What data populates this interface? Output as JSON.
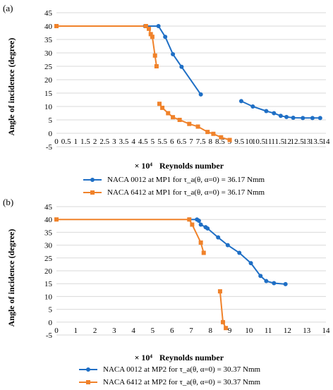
{
  "chart_data": [
    {
      "type": "line",
      "panel_label": "(a)",
      "xlabel_prefix": "× 10⁴",
      "xlabel": "Reynolds number",
      "ylabel": "Angle of incidence (degree)",
      "xlim": [
        0,
        14
      ],
      "ylim": [
        -5,
        45
      ],
      "x_ticks": [
        0,
        0.5,
        1,
        1.5,
        2,
        2.5,
        3,
        3.5,
        4,
        4.5,
        5,
        5.5,
        6,
        6.5,
        7,
        7.5,
        8,
        8.5,
        9,
        9.5,
        10,
        10.5,
        11,
        11.5,
        12,
        12.5,
        13,
        13.5,
        14
      ],
      "x_tick_labels": [
        "0",
        "0.5",
        "1",
        "1.5",
        "2",
        "2.5",
        "3",
        "3.5",
        "4",
        "4.5",
        "5",
        "5.5",
        "6",
        "6.5",
        "7",
        "7.5",
        "8",
        "8.5",
        "9",
        "9.5",
        "10",
        "10.5",
        "11",
        "11.5",
        "12",
        "12.5",
        "13",
        "13.5",
        "14"
      ],
      "y_ticks": [
        -5,
        0,
        5,
        10,
        15,
        20,
        25,
        30,
        35,
        40,
        45
      ],
      "y_tick_labels": [
        "-5",
        "0",
        "5",
        "10",
        "15",
        "20",
        "25",
        "30",
        "35",
        "40",
        "45"
      ],
      "legend_position": "bottom",
      "series": [
        {
          "name": "NACA 0012 at MP1 for τ_a(θ, α=0) = 36.17 Nmm",
          "color": "#1f6fc5",
          "marker": "circle",
          "segments": [
            [
              [
                4.6,
                40
              ],
              [
                5.3,
                40
              ],
              [
                5.65,
                36
              ],
              [
                6.05,
                29.5
              ],
              [
                6.5,
                24.8
              ],
              [
                7.5,
                14.5
              ]
            ],
            [
              [
                9.6,
                12
              ],
              [
                10.2,
                10
              ],
              [
                10.9,
                8.3
              ],
              [
                11.3,
                7.5
              ],
              [
                11.65,
                6.5
              ],
              [
                11.95,
                6.1
              ],
              [
                12.3,
                5.8
              ],
              [
                12.8,
                5.7
              ],
              [
                13.3,
                5.7
              ],
              [
                13.7,
                5.7
              ]
            ]
          ]
        },
        {
          "name": "NACA 6412 at MP1 for τ_a(θ, α=0) = 36.17 Nmm",
          "color": "#f0822a",
          "marker": "square",
          "segments": [
            [
              [
                0,
                40
              ],
              [
                4.65,
                40
              ],
              [
                4.8,
                39
              ],
              [
                4.9,
                37
              ],
              [
                4.98,
                36
              ],
              [
                5.12,
                29
              ],
              [
                5.2,
                25
              ]
            ],
            [
              [
                5.35,
                11
              ],
              [
                5.5,
                9.5
              ],
              [
                5.8,
                7.5
              ],
              [
                6.05,
                6
              ],
              [
                6.4,
                5
              ],
              [
                6.9,
                3.5
              ],
              [
                7.35,
                2.5
              ],
              [
                7.85,
                0.5
              ],
              [
                8.15,
                -0.2
              ],
              [
                8.55,
                -1.5
              ],
              [
                9.0,
                -2.5
              ]
            ]
          ]
        }
      ]
    },
    {
      "type": "line",
      "panel_label": "(b)",
      "xlabel_prefix": "× 10⁴",
      "xlabel": "Reynolds number",
      "ylabel": "Angle of incidence (degree)",
      "xlim": [
        0,
        14
      ],
      "ylim": [
        -5,
        45
      ],
      "x_ticks": [
        0,
        1,
        2,
        3,
        4,
        5,
        6,
        7,
        8,
        9,
        10,
        11,
        12,
        13,
        14
      ],
      "x_tick_labels": [
        "0",
        "1",
        "2",
        "3",
        "4",
        "5",
        "6",
        "7",
        "8",
        "9",
        "10",
        "11",
        "12",
        "13",
        "14"
      ],
      "y_ticks": [
        -5,
        0,
        5,
        10,
        15,
        20,
        25,
        30,
        35,
        40,
        45
      ],
      "y_tick_labels": [
        "-5",
        "0",
        "5",
        "10",
        "15",
        "20",
        "25",
        "30",
        "35",
        "40",
        "45"
      ],
      "legend_position": "bottom",
      "series": [
        {
          "name": "NACA 0012 at MP2 for τ_a(θ, α=0) = 30.37 Nmm",
          "color": "#1f6fc5",
          "marker": "circle",
          "segments": [
            [
              [
                6.9,
                40
              ],
              [
                7.3,
                40
              ],
              [
                7.4,
                39.5
              ],
              [
                7.5,
                38
              ],
              [
                7.75,
                37
              ],
              [
                7.85,
                36.5
              ],
              [
                8.4,
                33
              ],
              [
                8.9,
                30
              ],
              [
                9.5,
                27
              ],
              [
                10.1,
                23
              ],
              [
                10.6,
                18
              ],
              [
                10.9,
                16
              ],
              [
                11.3,
                15.2
              ],
              [
                11.9,
                14.8
              ]
            ]
          ]
        },
        {
          "name": "NACA 6412 at MP2 for τ_a(θ, α=0) = 30.37 Nmm",
          "color": "#f0822a",
          "marker": "square",
          "segments": [
            [
              [
                0,
                40
              ],
              [
                6.9,
                40
              ],
              [
                7.05,
                38
              ],
              [
                7.5,
                31
              ],
              [
                7.65,
                27
              ]
            ],
            [
              [
                8.5,
                12
              ],
              [
                8.65,
                0
              ],
              [
                8.8,
                -2.3
              ]
            ]
          ]
        }
      ]
    }
  ]
}
